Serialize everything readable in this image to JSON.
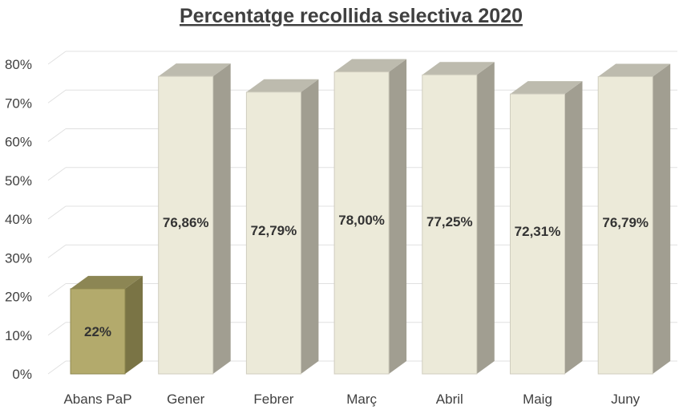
{
  "chart_data": {
    "type": "bar",
    "title": "Percentatge recollida selectiva 2020",
    "categories": [
      "Abans PaP",
      "Gener",
      "Febrer",
      "Març",
      "Abril",
      "Maig",
      "Juny"
    ],
    "values": [
      22,
      76.86,
      72.79,
      78.0,
      77.25,
      72.31,
      76.79
    ],
    "data_labels": [
      "22%",
      "76,86%",
      "72,79%",
      "78,00%",
      "77,25%",
      "72,31%",
      "76,79%"
    ],
    "ylim": [
      0,
      80
    ],
    "yticks": [
      0,
      10,
      20,
      30,
      40,
      50,
      60,
      70,
      80
    ],
    "ytick_labels": [
      "0%",
      "10%",
      "20%",
      "30%",
      "40%",
      "50%",
      "60%",
      "70%",
      "80%"
    ],
    "xlabel": "",
    "ylabel": "",
    "grid": true,
    "legend": "none",
    "style": "3d-column",
    "colors": {
      "highlight_front": "#b3aa6c",
      "highlight_side": "#7a7445",
      "highlight_top": "#8c8654",
      "bar_front": "#ecead9",
      "bar_side": "#a19e91",
      "bar_top": "#bdbbae",
      "bar_edge": "#d0cdbf",
      "grid": "#e0e0e0",
      "text": "#404040"
    }
  }
}
